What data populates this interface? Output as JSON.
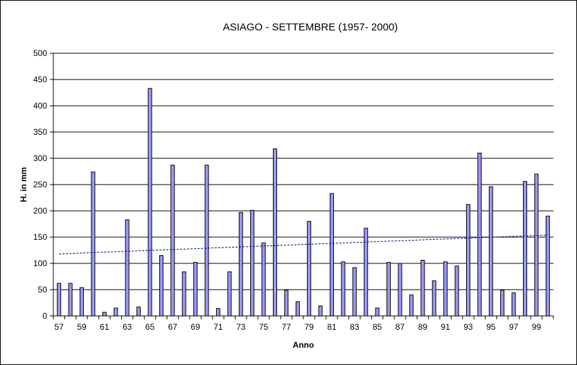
{
  "chart_data": {
    "type": "bar",
    "title": "ASIAGO - SETTEMBRE (1957- 2000)",
    "xlabel": "Anno",
    "ylabel": "H. in mm",
    "ylim": [
      0,
      500
    ],
    "yticks": [
      0,
      50,
      100,
      150,
      200,
      250,
      300,
      350,
      400,
      450,
      500
    ],
    "grid": true,
    "categories": [
      "57",
      "58",
      "59",
      "60",
      "61",
      "62",
      "63",
      "64",
      "65",
      "66",
      "67",
      "68",
      "69",
      "70",
      "71",
      "72",
      "73",
      "74",
      "75",
      "76",
      "77",
      "78",
      "79",
      "80",
      "81",
      "82",
      "83",
      "84",
      "85",
      "86",
      "87",
      "88",
      "89",
      "90",
      "91",
      "92",
      "93",
      "94",
      "95",
      "96",
      "97",
      "98",
      "99",
      "00"
    ],
    "xtick_labels": [
      "57",
      "59",
      "61",
      "63",
      "65",
      "67",
      "69",
      "71",
      "73",
      "75",
      "77",
      "79",
      "81",
      "83",
      "85",
      "87",
      "89",
      "91",
      "93",
      "95",
      "97",
      "99"
    ],
    "series": [
      {
        "type": "bar",
        "values": [
          62,
          62,
          54,
          274,
          7,
          15,
          183,
          17,
          433,
          115,
          287,
          84,
          102,
          287,
          14,
          84,
          197,
          201,
          139,
          318,
          49,
          27,
          180,
          19,
          233,
          103,
          92,
          167,
          15,
          102,
          100,
          40,
          106,
          67,
          103,
          95,
          212,
          310,
          246,
          49,
          44,
          256,
          270,
          190
        ],
        "color": "#9999ff"
      },
      {
        "type": "trendline",
        "start": 118,
        "end": 154,
        "color": "#000080",
        "style": "dashed"
      }
    ]
  }
}
